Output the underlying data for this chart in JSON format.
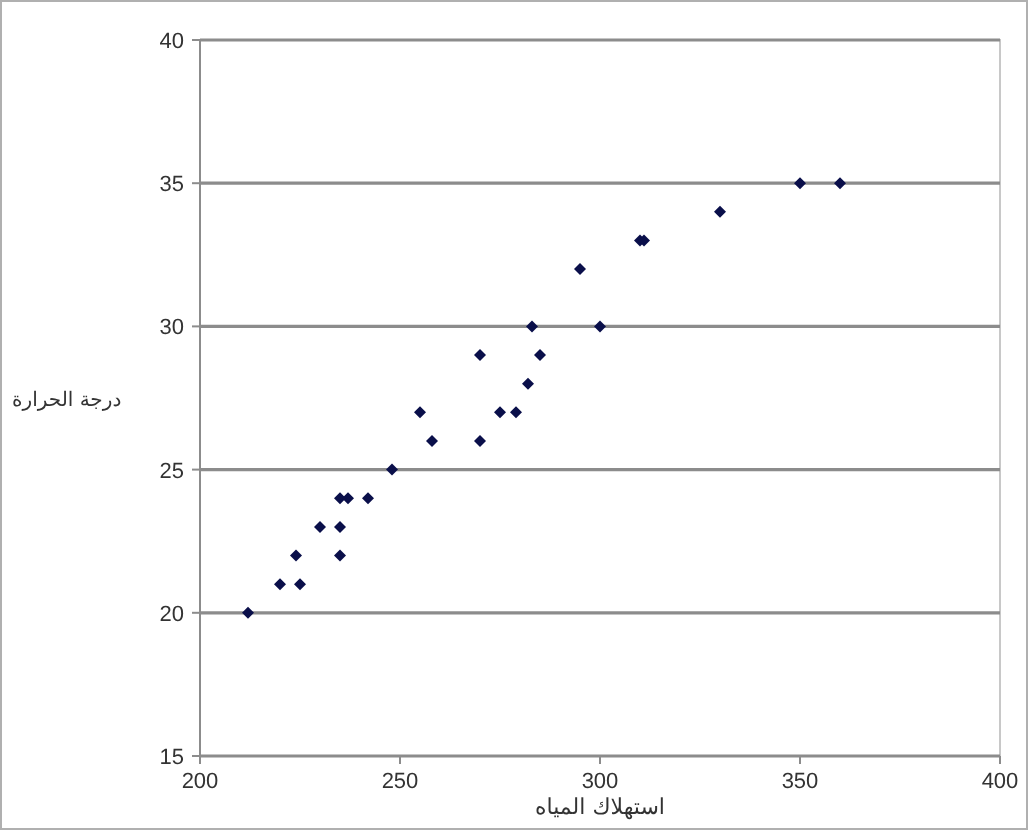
{
  "chart_data": {
    "type": "scatter",
    "xlabel": "استهلاك المياه",
    "ylabel": "درجة الحرارة",
    "x": [
      212,
      220,
      225,
      224,
      230,
      235,
      235,
      235,
      237,
      242,
      248,
      255,
      258,
      270,
      270,
      275,
      279,
      282,
      283,
      285,
      295,
      300,
      310,
      311,
      330,
      350,
      360
    ],
    "series": [
      {
        "color": "#0a0f4a",
        "values": [
          20,
          21,
          21,
          22,
          23,
          22,
          23,
          24,
          24,
          24,
          25,
          27,
          26,
          26,
          29,
          27,
          27,
          28,
          30,
          29,
          32,
          30,
          33,
          33,
          34,
          35,
          35
        ]
      }
    ],
    "xlim": [
      200,
      400
    ],
    "ylim": [
      15,
      40
    ],
    "xticks": [
      200,
      250,
      300,
      350,
      400
    ],
    "yticks": [
      15,
      20,
      25,
      30,
      35,
      40
    ],
    "grid": "y",
    "marker": "diamond"
  }
}
